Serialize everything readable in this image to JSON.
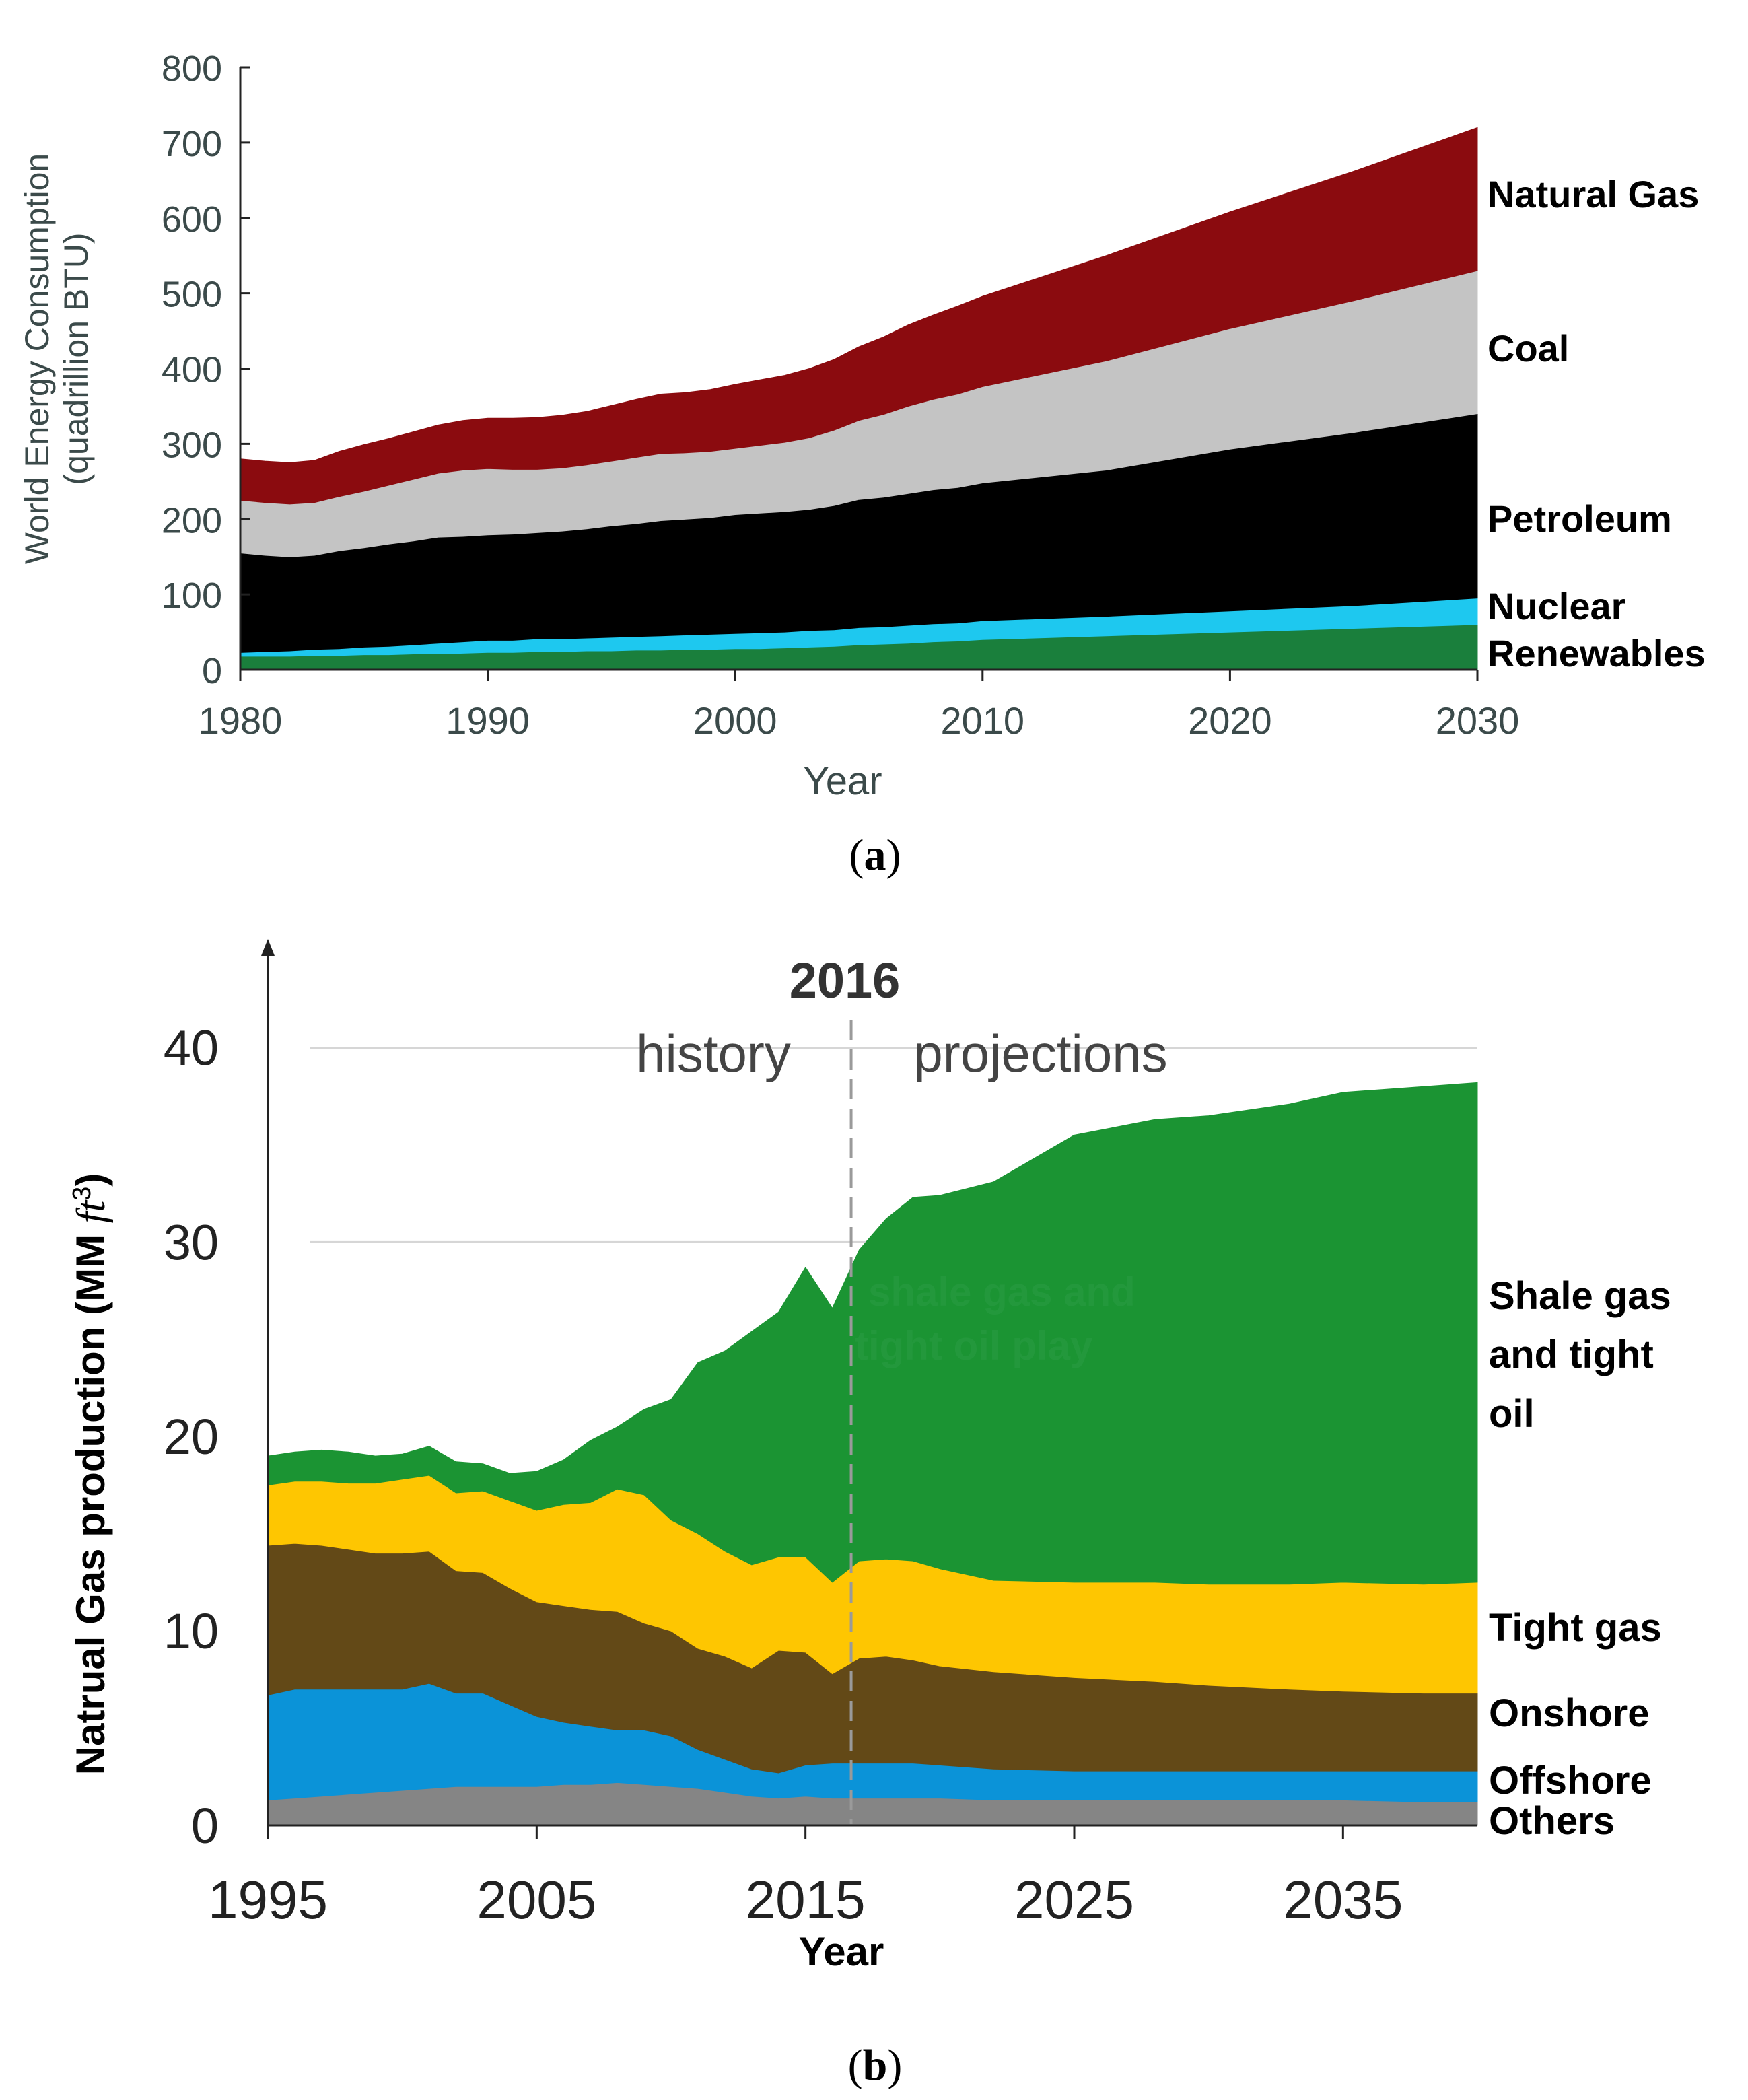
{
  "chart_data": [
    {
      "type": "area",
      "stacked": true,
      "panel_label": "(a)",
      "caption_letter": "a",
      "xlabel": "Year",
      "ylabel_line1": "World Energy Consumption",
      "ylabel_line2": "(quadrillion BTU)",
      "xlim": [
        1980,
        2030
      ],
      "ylim": [
        0,
        800
      ],
      "x_ticks": [
        "1980",
        "1990",
        "2000",
        "2010",
        "2020",
        "2030"
      ],
      "y_ticks": [
        "0",
        "100",
        "200",
        "300",
        "400",
        "500",
        "600",
        "700",
        "800"
      ],
      "x": [
        1980,
        1981,
        1982,
        1983,
        1984,
        1985,
        1986,
        1987,
        1988,
        1989,
        1990,
        1991,
        1992,
        1993,
        1994,
        1995,
        1996,
        1997,
        1998,
        1999,
        2000,
        2001,
        2002,
        2003,
        2004,
        2005,
        2006,
        2007,
        2008,
        2009,
        2010,
        2015,
        2020,
        2025,
        2030
      ],
      "series": [
        {
          "name": "Renewables",
          "color": "#1a7f3c",
          "values": [
            18,
            18,
            18,
            19,
            19,
            20,
            20,
            21,
            21,
            22,
            23,
            23,
            24,
            24,
            25,
            25,
            26,
            26,
            27,
            27,
            28,
            28,
            29,
            30,
            31,
            33,
            34,
            35,
            37,
            38,
            40,
            45,
            50,
            55,
            60
          ]
        },
        {
          "name": "Nuclear",
          "color": "#1ec8ef",
          "values": [
            5,
            6,
            7,
            8,
            9,
            10,
            11,
            12,
            14,
            15,
            16,
            16,
            17,
            17,
            17,
            18,
            18,
            19,
            19,
            20,
            20,
            21,
            21,
            22,
            22,
            23,
            23,
            24,
            24,
            24,
            25,
            26,
            28,
            30,
            35
          ]
        },
        {
          "name": "Petroleum",
          "color": "#000000",
          "values": [
            132,
            128,
            125,
            125,
            130,
            132,
            136,
            138,
            141,
            140,
            140,
            141,
            141,
            143,
            145,
            148,
            150,
            153,
            154,
            155,
            158,
            159,
            160,
            161,
            165,
            170,
            172,
            175,
            178,
            180,
            183,
            194,
            215,
            230,
            245
          ]
        },
        {
          "name": "Coal",
          "color": "#c4c4c4",
          "values": [
            70,
            70,
            70,
            70,
            72,
            75,
            78,
            82,
            85,
            88,
            88,
            86,
            84,
            84,
            85,
            86,
            88,
            89,
            88,
            88,
            88,
            90,
            92,
            95,
            100,
            105,
            110,
            116,
            120,
            124,
            128,
            145,
            160,
            175,
            190
          ]
        },
        {
          "name": "Natural Gas",
          "color": "#8b0b0f",
          "values": [
            55,
            55,
            55,
            56,
            60,
            62,
            62,
            63,
            64,
            66,
            67,
            68,
            69,
            70,
            71,
            74,
            77,
            79,
            80,
            82,
            85,
            87,
            89,
            92,
            94,
            98,
            103,
            108,
            112,
            117,
            120,
            140,
            155,
            172,
            190
          ]
        }
      ],
      "legend_labels": [
        "Natural Gas",
        "Coal",
        "Petroleum",
        "Nuclear",
        "Renewables"
      ]
    },
    {
      "type": "area",
      "stacked": true,
      "panel_label": "(b)",
      "caption_letter": "b",
      "xlabel": "Year",
      "ylabel": "Natrual Gas production (MM ",
      "ylabel_unit": "ft",
      "ylabel_exp": "3",
      "ylabel_close": ")",
      "xlim": [
        1995,
        2040
      ],
      "ylim": [
        0,
        45
      ],
      "x_ticks": [
        "1995",
        "2005",
        "2015",
        "2025",
        "2035"
      ],
      "y_ticks": [
        "0",
        "10",
        "20",
        "30",
        "40"
      ],
      "gridlines": [
        30,
        40
      ],
      "divider_year": 2016.7,
      "divider_title": "2016",
      "history_label": "history",
      "projection_label": "projections",
      "watermark_line1": "shale gas and",
      "watermark_line2": "tight oil play",
      "x": [
        1995,
        1996,
        1997,
        1998,
        1999,
        2000,
        2001,
        2002,
        2003,
        2004,
        2005,
        2006,
        2007,
        2008,
        2009,
        2010,
        2011,
        2012,
        2013,
        2014,
        2015,
        2016,
        2017,
        2018,
        2019,
        2020,
        2022,
        2025,
        2028,
        2030,
        2033,
        2035,
        2038,
        2040
      ],
      "series": [
        {
          "name": "Others",
          "color": "#858585",
          "values": [
            1.3,
            1.4,
            1.5,
            1.6,
            1.7,
            1.8,
            1.9,
            2.0,
            2.0,
            2.0,
            2.0,
            2.1,
            2.1,
            2.2,
            2.1,
            2.0,
            1.9,
            1.7,
            1.5,
            1.4,
            1.5,
            1.4,
            1.4,
            1.4,
            1.4,
            1.4,
            1.3,
            1.3,
            1.3,
            1.3,
            1.3,
            1.3,
            1.2,
            1.2
          ]
        },
        {
          "name": "Offshore",
          "color": "#0b93d8",
          "values": [
            5.4,
            5.6,
            5.5,
            5.4,
            5.3,
            5.2,
            5.4,
            4.8,
            4.8,
            4.2,
            3.6,
            3.2,
            3.0,
            2.7,
            2.8,
            2.6,
            2.0,
            1.7,
            1.4,
            1.3,
            1.6,
            1.8,
            1.8,
            1.8,
            1.8,
            1.7,
            1.6,
            1.5,
            1.5,
            1.5,
            1.5,
            1.5,
            1.6,
            1.6
          ]
        },
        {
          "name": "Onshore",
          "color": "#634917",
          "values": [
            7.7,
            7.5,
            7.4,
            7.2,
            7.0,
            7.0,
            6.8,
            6.3,
            6.2,
            6.0,
            5.9,
            6.0,
            6.0,
            6.1,
            5.5,
            5.4,
            5.2,
            5.3,
            5.2,
            6.3,
            5.8,
            4.6,
            5.4,
            5.5,
            5.3,
            5.1,
            5.0,
            4.8,
            4.6,
            4.4,
            4.2,
            4.1,
            4.0,
            4.0
          ]
        },
        {
          "name": "Tight gas",
          "color": "#fec601",
          "values": [
            3.1,
            3.2,
            3.3,
            3.4,
            3.6,
            3.8,
            3.9,
            4.0,
            4.2,
            4.5,
            4.7,
            5.2,
            5.5,
            6.3,
            6.6,
            5.7,
            5.9,
            5.4,
            5.3,
            4.8,
            4.9,
            4.7,
            5.0,
            5.0,
            5.1,
            5.0,
            4.7,
            4.9,
            5.1,
            5.2,
            5.4,
            5.6,
            5.6,
            5.7
          ]
        },
        {
          "name": "Shale gas and tight oil",
          "color": "#1b9433",
          "values": [
            1.5,
            1.5,
            1.6,
            1.6,
            1.4,
            1.3,
            1.5,
            1.6,
            1.4,
            1.4,
            2.0,
            2.3,
            3.2,
            3.2,
            4.4,
            6.2,
            8.8,
            10.3,
            12.0,
            12.6,
            14.9,
            14.1,
            16.0,
            17.5,
            18.7,
            19.2,
            20.5,
            23.0,
            23.8,
            24.1,
            24.7,
            25.2,
            25.6,
            25.7
          ]
        }
      ],
      "legend_labels": [
        "Shale gas",
        "and tight",
        "oil",
        "Tight gas",
        "Onshore",
        "Offshore",
        "Others"
      ]
    }
  ]
}
